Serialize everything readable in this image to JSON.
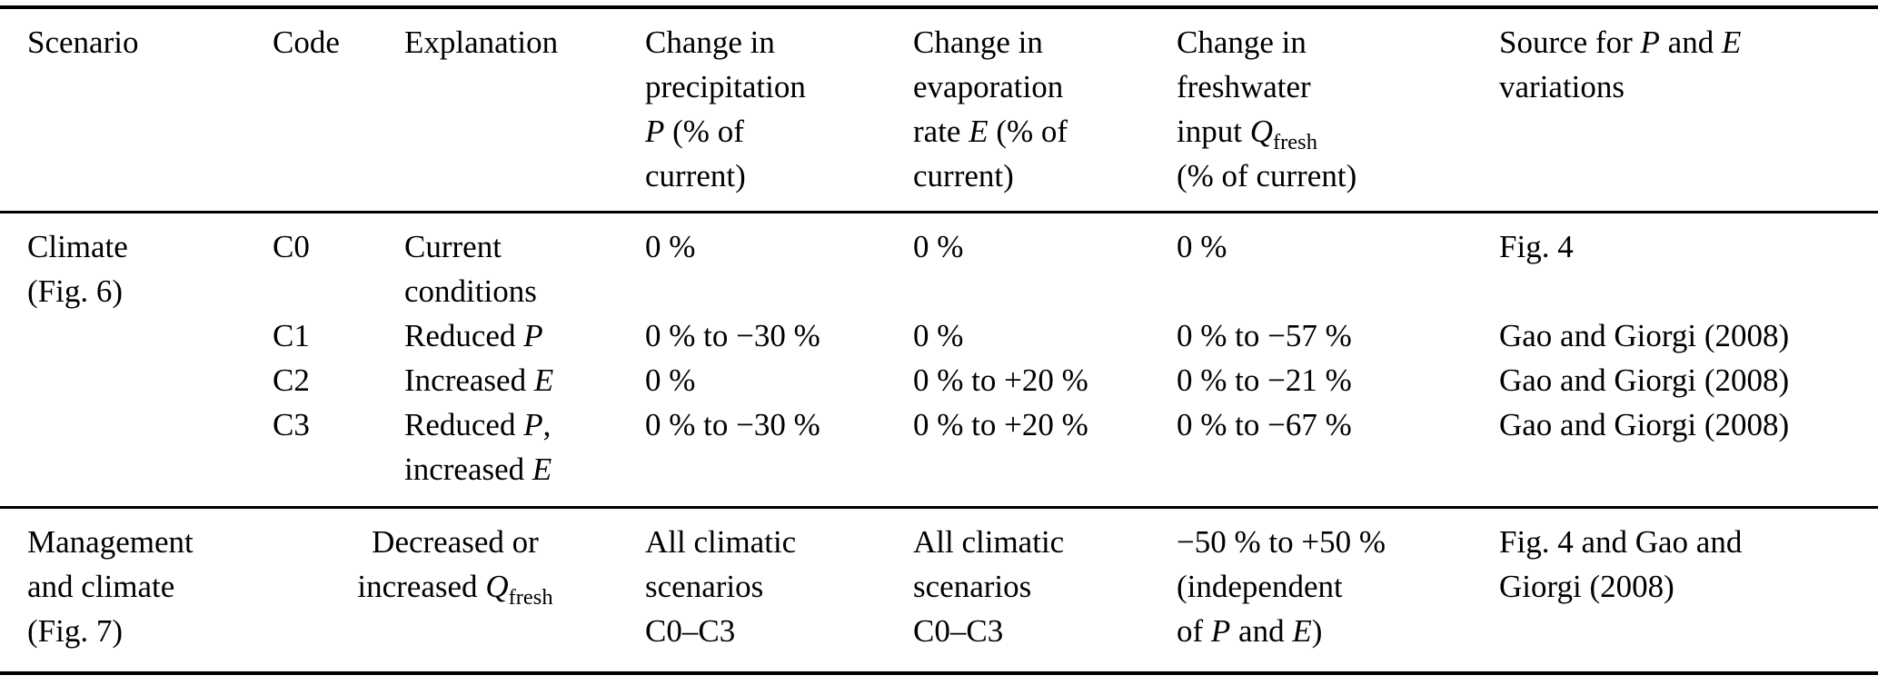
{
  "page": {
    "background_color": "#ffffff",
    "text_color": "#000000",
    "rule_color": "#000000"
  },
  "table": {
    "headers": [
      [
        {
          "s": "Scenario"
        }
      ],
      [
        {
          "s": "Code"
        }
      ],
      [
        {
          "s": "Explanation"
        }
      ],
      [
        {
          "s": "Change in"
        },
        {
          "br": true
        },
        {
          "s": "precipitation"
        },
        {
          "br": true
        },
        {
          "i": "P"
        },
        {
          "s": " (% of"
        },
        {
          "br": true
        },
        {
          "s": "current)"
        }
      ],
      [
        {
          "s": "Change in"
        },
        {
          "br": true
        },
        {
          "s": "evaporation"
        },
        {
          "br": true
        },
        {
          "s": "rate "
        },
        {
          "i": "E"
        },
        {
          "s": " (% of"
        },
        {
          "br": true
        },
        {
          "s": "current)"
        }
      ],
      [
        {
          "s": "Change in"
        },
        {
          "br": true
        },
        {
          "s": "freshwater"
        },
        {
          "br": true
        },
        {
          "s": "input "
        },
        {
          "i": "Q"
        },
        {
          "sub": "fresh"
        },
        {
          "br": true
        },
        {
          "s": "(% of current)"
        }
      ],
      [
        {
          "s": "Source for "
        },
        {
          "i": "P"
        },
        {
          "s": " and "
        },
        {
          "i": "E"
        },
        {
          "br": true
        },
        {
          "s": "variations"
        }
      ]
    ],
    "climate_rows": [
      {
        "cells": [
          [
            {
              "s": "Climate"
            },
            {
              "br": true
            },
            {
              "s": "(Fig. 6)"
            }
          ],
          [
            {
              "s": "C0"
            }
          ],
          [
            {
              "s": "Current"
            },
            {
              "br": true
            },
            {
              "s": "conditions"
            }
          ],
          [
            {
              "s": "0 %"
            }
          ],
          [
            {
              "s": "0 %"
            }
          ],
          [
            {
              "s": "0 %"
            }
          ],
          [
            {
              "s": "Fig. 4"
            }
          ]
        ]
      },
      {
        "cells": [
          [],
          [
            {
              "s": "C1"
            }
          ],
          [
            {
              "s": "Reduced "
            },
            {
              "i": "P"
            }
          ],
          [
            {
              "s": "0 % to −30 %"
            }
          ],
          [
            {
              "s": "0 %"
            }
          ],
          [
            {
              "s": "0 % to −57 %"
            }
          ],
          [
            {
              "s": "Gao and Giorgi (2008)"
            }
          ]
        ]
      },
      {
        "cells": [
          [],
          [
            {
              "s": "C2"
            }
          ],
          [
            {
              "s": "Increased "
            },
            {
              "i": "E"
            }
          ],
          [
            {
              "s": "0 %"
            }
          ],
          [
            {
              "s": "0 % to +20 %"
            }
          ],
          [
            {
              "s": "0 % to −21 %"
            }
          ],
          [
            {
              "s": "Gao and Giorgi (2008)"
            }
          ]
        ]
      },
      {
        "cells": [
          [],
          [
            {
              "s": "C3"
            }
          ],
          [
            {
              "s": "Reduced "
            },
            {
              "i": "P"
            },
            {
              "s": ","
            },
            {
              "br": true
            },
            {
              "s": "increased "
            },
            {
              "i": "E"
            }
          ],
          [
            {
              "s": "0 % to −30 %"
            }
          ],
          [
            {
              "s": "0 % to +20 %"
            }
          ],
          [
            {
              "s": "0 % to −67 %"
            }
          ],
          [
            {
              "s": "Gao and Giorgi (2008)"
            }
          ]
        ]
      }
    ],
    "management_row": {
      "cells": [
        [
          {
            "s": "Management"
          },
          {
            "br": true
          },
          {
            "s": "and climate"
          },
          {
            "br": true
          },
          {
            "s": "(Fig. 7)"
          }
        ],
        [
          {
            "s": "Decreased or"
          },
          {
            "br": true
          },
          {
            "s": "increased "
          },
          {
            "i": "Q"
          },
          {
            "sub": "fresh"
          }
        ],
        [
          {
            "s": "All climatic"
          },
          {
            "br": true
          },
          {
            "s": "scenarios"
          },
          {
            "br": true
          },
          {
            "s": "C0–C3"
          }
        ],
        [
          {
            "s": "All climatic"
          },
          {
            "br": true
          },
          {
            "s": "scenarios"
          },
          {
            "br": true
          },
          {
            "s": "C0–C3"
          }
        ],
        [
          {
            "s": "−50 % to +50 %"
          },
          {
            "br": true
          },
          {
            "s": "(independent"
          },
          {
            "br": true
          },
          {
            "s": "of "
          },
          {
            "i": "P"
          },
          {
            "s": " and "
          },
          {
            "i": "E"
          },
          {
            "s": ")"
          }
        ],
        [
          {
            "s": "Fig. 4 and Gao and"
          },
          {
            "br": true
          },
          {
            "s": "Giorgi (2008)"
          }
        ]
      ]
    }
  }
}
